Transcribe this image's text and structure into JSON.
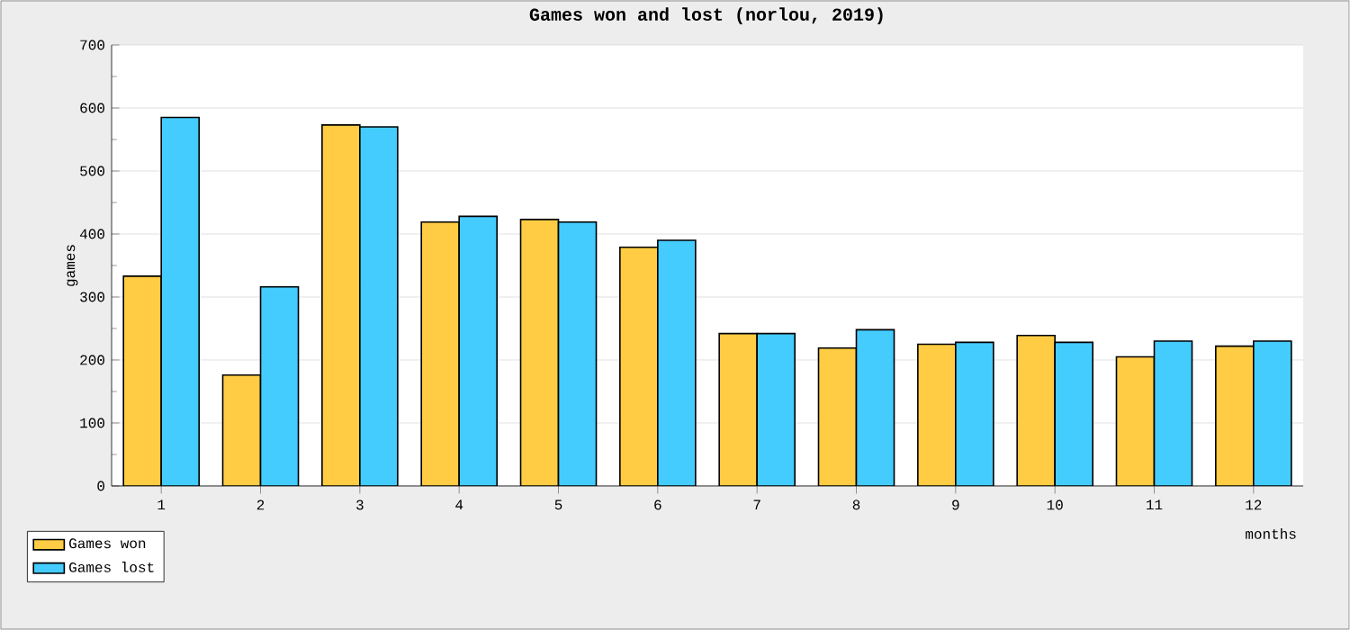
{
  "chart_data": {
    "type": "bar",
    "title": "Games won and lost (norlou, 2019)",
    "xlabel": "months",
    "ylabel": "games",
    "categories": [
      "1",
      "2",
      "3",
      "4",
      "5",
      "6",
      "7",
      "8",
      "9",
      "10",
      "11",
      "12"
    ],
    "series": [
      {
        "name": "Games won",
        "color": "#ffcc44",
        "values": [
          333,
          176,
          573,
          419,
          423,
          379,
          242,
          219,
          225,
          239,
          205,
          222
        ]
      },
      {
        "name": "Games lost",
        "color": "#44ccff",
        "values": [
          585,
          316,
          570,
          428,
          419,
          390,
          242,
          248,
          228,
          228,
          230,
          230
        ]
      }
    ],
    "ylim": [
      0,
      700
    ],
    "yticks": [
      0,
      100,
      200,
      300,
      400,
      500,
      600,
      700
    ],
    "grid": "y",
    "legend": "bottom left"
  }
}
